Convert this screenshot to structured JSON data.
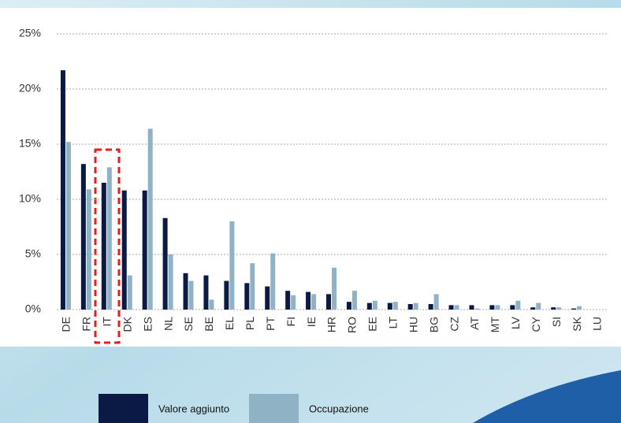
{
  "chart_data": {
    "type": "bar",
    "categories": [
      "DE",
      "FR",
      "IT",
      "DK",
      "ES",
      "NL",
      "SE",
      "BE",
      "EL",
      "PL",
      "PT",
      "FI",
      "IE",
      "HR",
      "RO",
      "EE",
      "LT",
      "HU",
      "BG",
      "CZ",
      "AT",
      "MT",
      "LV",
      "CY",
      "SI",
      "SK",
      "LU"
    ],
    "series": [
      {
        "name": "Valore aggiunto",
        "color": "#0b1a45",
        "values": [
          21.7,
          13.2,
          11.5,
          10.8,
          10.8,
          8.3,
          3.3,
          3.1,
          2.6,
          2.4,
          2.1,
          1.7,
          1.6,
          1.4,
          0.7,
          0.6,
          0.6,
          0.5,
          0.5,
          0.4,
          0.4,
          0.4,
          0.4,
          0.2,
          0.2,
          0.1,
          0
        ]
      },
      {
        "name": "Occupazione",
        "color": "#8fb3c4",
        "values": [
          15.2,
          10.9,
          12.9,
          3.1,
          16.4,
          5.0,
          2.6,
          0.9,
          8.0,
          4.2,
          5.1,
          1.3,
          1.4,
          3.8,
          1.7,
          0.8,
          0.7,
          0.6,
          1.4,
          0.4,
          0.1,
          0.4,
          0.8,
          0.6,
          0.2,
          0.3,
          0
        ]
      }
    ],
    "ylim": [
      0,
      25
    ],
    "yticks": [
      {
        "value": 0,
        "label": "0%"
      },
      {
        "value": 5,
        "label": "5%"
      },
      {
        "value": 10,
        "label": "10%"
      },
      {
        "value": 15,
        "label": "15%"
      },
      {
        "value": 20,
        "label": "20%"
      },
      {
        "value": 25,
        "label": "25%"
      }
    ],
    "grid": true
  }
}
